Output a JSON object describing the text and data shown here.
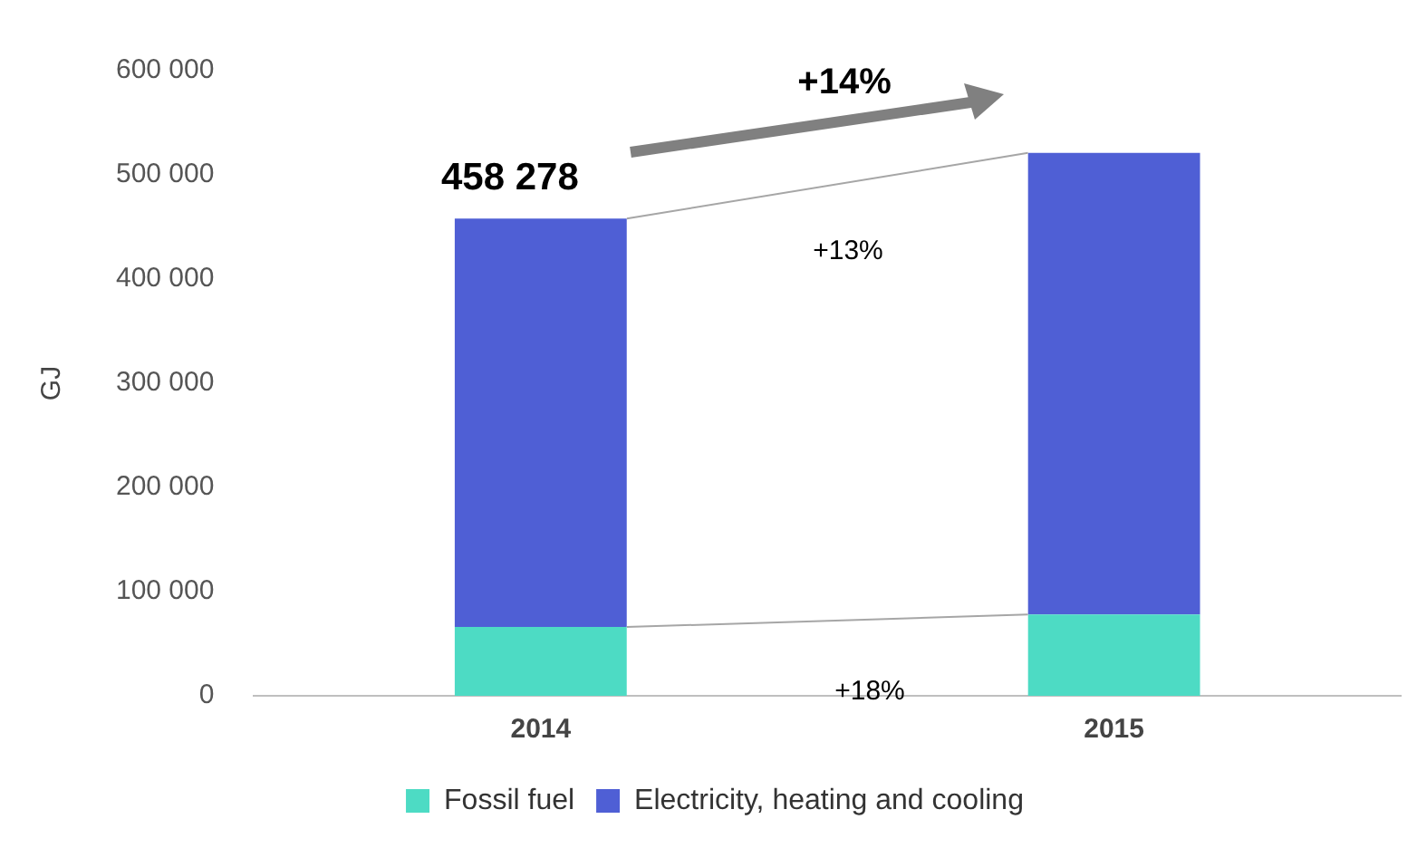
{
  "chart_data": {
    "type": "bar",
    "stacked": true,
    "ylabel": "GJ",
    "categories": [
      "2014",
      "2015"
    ],
    "series": [
      {
        "name": "Fossil fuel",
        "color": "#4ddbc4",
        "values": [
          66000,
          78000
        ]
      },
      {
        "name": "Electricity, heating and cooling",
        "color": "#4f5fd5",
        "values": [
          392000,
          443000
        ]
      }
    ],
    "ylim": [
      0,
      600000
    ],
    "yticks": [
      {
        "value": 0,
        "label": "0"
      },
      {
        "value": 100000,
        "label": "100 000"
      },
      {
        "value": 200000,
        "label": "200 000"
      },
      {
        "value": 300000,
        "label": "300 000"
      },
      {
        "value": 400000,
        "label": "400 000"
      },
      {
        "value": 500000,
        "label": "500 000"
      },
      {
        "value": 600000,
        "label": "600 000"
      }
    ],
    "grid": false,
    "legend": "bottom",
    "annotations": [
      {
        "text": "458 278",
        "x": "2014",
        "y": 458278
      },
      "+14%",
      "+13%",
      "+18%"
    ]
  }
}
